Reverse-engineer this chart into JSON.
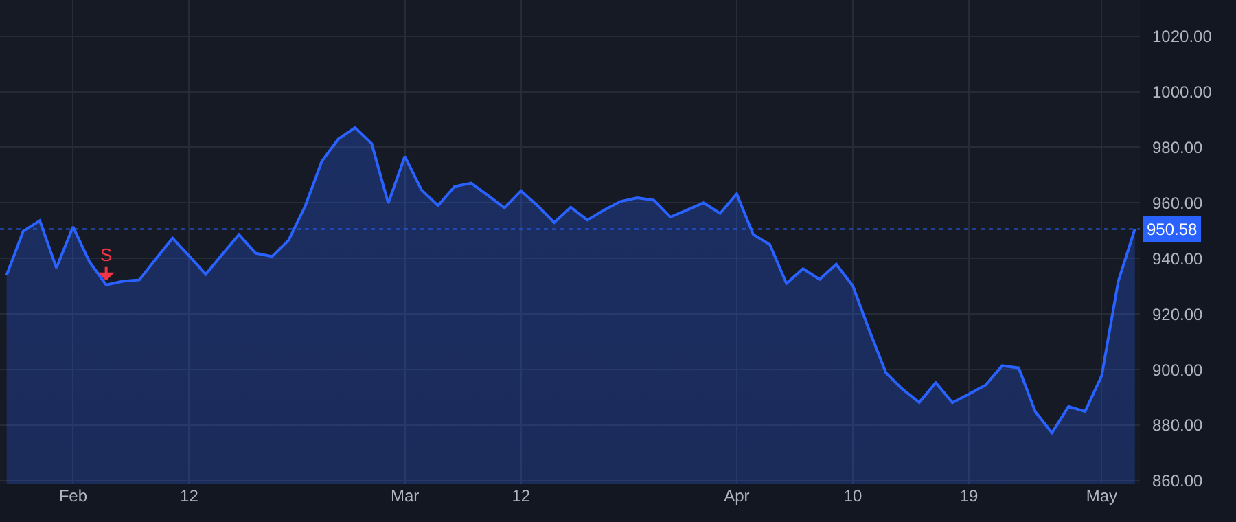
{
  "chart_data": {
    "type": "area",
    "categories": [
      null,
      null,
      null,
      null,
      "Feb",
      null,
      null,
      null,
      null,
      null,
      null,
      "12",
      null,
      null,
      null,
      null,
      null,
      null,
      null,
      null,
      null,
      null,
      null,
      null,
      "Mar",
      null,
      null,
      null,
      null,
      null,
      null,
      "12",
      null,
      null,
      null,
      null,
      null,
      null,
      null,
      null,
      null,
      null,
      null,
      null,
      "Apr",
      null,
      null,
      null,
      null,
      null,
      null,
      "10",
      null,
      null,
      null,
      null,
      null,
      null,
      "19",
      null,
      null,
      null,
      null,
      null,
      null,
      null,
      "May",
      null,
      null
    ],
    "series": [
      {
        "color": "#2962ff",
        "values": [
          934.0,
          949.8,
          953.6,
          936.6,
          951.4,
          938.7,
          930.5,
          931.8,
          932.3,
          939.9,
          947.3,
          940.9,
          934.3,
          941.5,
          948.6,
          941.9,
          940.7,
          946.6,
          958.9,
          975.0,
          983.0,
          987.1,
          981.3,
          959.9,
          976.7,
          964.7,
          959.0,
          965.9,
          967.1,
          962.7,
          958.2,
          964.3,
          959.0,
          952.9,
          958.4,
          953.8,
          957.4,
          960.5,
          961.8,
          961.0,
          954.9,
          957.4,
          960.0,
          956.2,
          963.2,
          948.6,
          945.0,
          931.0,
          936.3,
          932.5,
          937.9,
          930.1,
          914.0,
          898.8,
          892.9,
          888.2,
          895.3,
          888.1,
          891.2,
          894.4,
          901.4,
          900.6,
          884.8,
          877.3,
          886.7,
          884.9,
          897.8,
          931.8,
          950.6
        ]
      }
    ],
    "ylim": [
      859,
      1033
    ],
    "yticks": [
      {
        "value": 860,
        "label": "860.00"
      },
      {
        "value": 880,
        "label": "880.00"
      },
      {
        "value": 900,
        "label": "900.00"
      },
      {
        "value": 920,
        "label": "920.00"
      },
      {
        "value": 940,
        "label": "940.00"
      },
      {
        "value": 960,
        "label": "960.00"
      },
      {
        "value": 980,
        "label": "980.00"
      },
      {
        "value": 1000,
        "label": "1000.00"
      },
      {
        "value": 1020,
        "label": "1020.00"
      }
    ],
    "ref_lines": [
      {
        "axis": "y",
        "value": 950.58,
        "label": "950.58",
        "color": "#2962ff",
        "line_style": "dotted"
      }
    ],
    "annotations": [
      {
        "text": "S",
        "y": 930.5
      }
    ],
    "grid": true,
    "marker": "none",
    "line_style": "solid"
  }
}
